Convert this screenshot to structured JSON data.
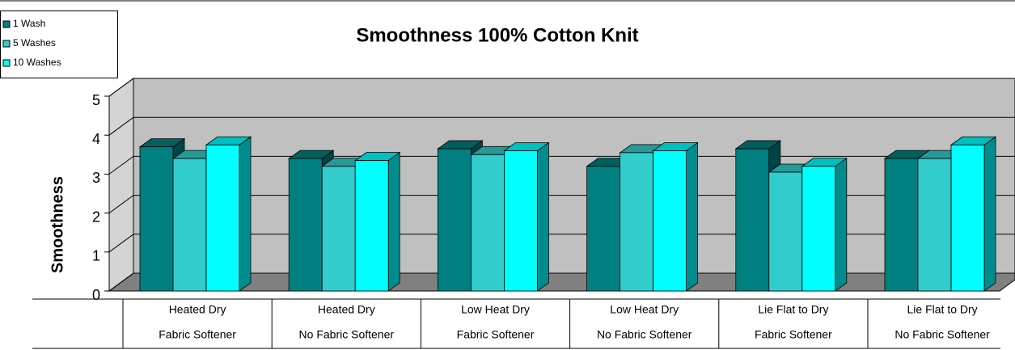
{
  "chart_data": {
    "type": "bar3d",
    "title": "Smoothness 100% Cotton Knit",
    "y_label": "Smoothness",
    "categories": [
      [
        "Heated Dry",
        "Fabric Softener"
      ],
      [
        "Heated Dry",
        "No Fabric Softener"
      ],
      [
        "Low Heat Dry",
        "Fabric Softener"
      ],
      [
        "Low Heat Dry",
        "No Fabric Softener"
      ],
      [
        "Lie Flat to Dry",
        "Fabric Softener"
      ],
      [
        "Lie Flat to Dry",
        "No Fabric Softener"
      ]
    ],
    "series": [
      {
        "name": "1 Wash",
        "color": "#008080",
        "values": [
          3.7,
          3.4,
          3.65,
          3.2,
          3.65,
          3.4
        ]
      },
      {
        "name": "5 Washes",
        "color": "#33cccc",
        "values": [
          3.4,
          3.2,
          3.5,
          3.55,
          3.05,
          3.4
        ]
      },
      {
        "name": "10 Washes",
        "color": "#00ffff",
        "values": [
          3.75,
          3.35,
          3.6,
          3.6,
          3.2,
          3.75
        ]
      }
    ],
    "ylim": [
      0,
      5
    ],
    "yticks": [
      0,
      1,
      2,
      3,
      4,
      5
    ],
    "grid": true,
    "legend": "top-left"
  }
}
